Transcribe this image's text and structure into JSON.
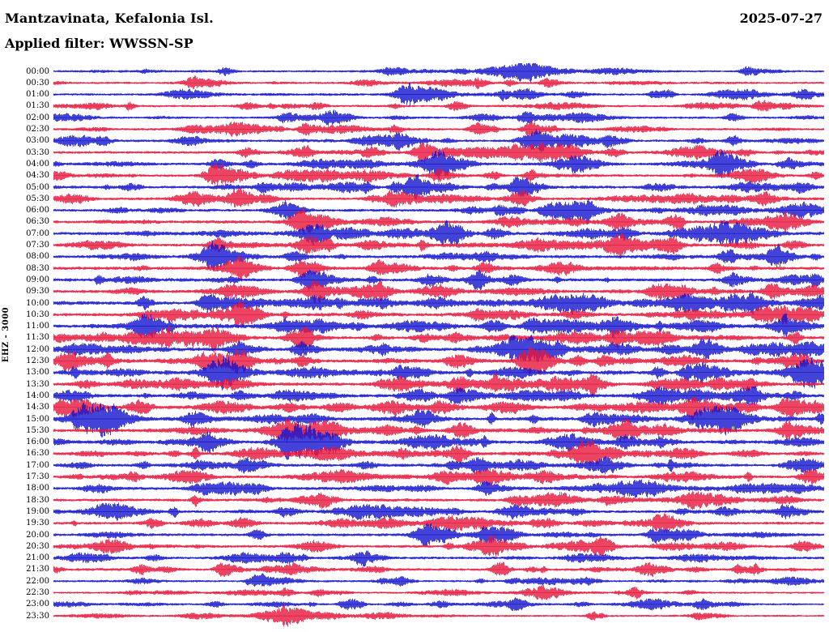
{
  "header": {
    "station": "Mantzavinata, Kefalonia Isl.",
    "date": "2025-07-27",
    "filter_label": "Applied filter: WWSSN-SP"
  },
  "axis": {
    "channel_label": "EHZ - 3000"
  },
  "chart_data": {
    "type": "line",
    "subtype": "helicorder-seismogram",
    "station": "Mantzavinata, Kefalonia Isl.",
    "date": "2025-07-27",
    "filter": "WWSSN-SP",
    "channel": "EHZ",
    "scale": 3000,
    "minutes_per_row": 30,
    "time_start": "00:00",
    "time_end": "24:00",
    "grid": false,
    "legend": "none",
    "colors": {
      "blue": "#1414cf",
      "red": "#e8173d"
    },
    "seed": 20250727,
    "rows": [
      {
        "time": "00:00",
        "color": "blue",
        "activity": 0.4,
        "events": [
          [
            0.22,
            5
          ],
          [
            0.62,
            4
          ],
          [
            0.9,
            6
          ]
        ]
      },
      {
        "time": "00:30",
        "color": "red",
        "activity": 0.42,
        "events": [
          [
            0.18,
            7
          ],
          [
            0.55,
            5
          ],
          [
            0.64,
            6
          ]
        ]
      },
      {
        "time": "01:00",
        "color": "blue",
        "activity": 0.45,
        "events": [
          [
            0.46,
            16
          ],
          [
            0.78,
            5
          ]
        ]
      },
      {
        "time": "01:30",
        "color": "red",
        "activity": 0.45,
        "events": [
          [
            0.34,
            5
          ],
          [
            0.52,
            6
          ],
          [
            0.92,
            7
          ]
        ]
      },
      {
        "time": "02:00",
        "color": "blue",
        "activity": 0.5,
        "events": [
          [
            0.36,
            10
          ],
          [
            0.3,
            6
          ],
          [
            0.88,
            5
          ]
        ]
      },
      {
        "time": "02:30",
        "color": "red",
        "activity": 0.5,
        "events": [
          [
            0.33,
            5
          ],
          [
            0.55,
            8
          ],
          [
            0.62,
            10
          ]
        ]
      },
      {
        "time": "03:00",
        "color": "blue",
        "activity": 0.55,
        "events": [
          [
            0.63,
            15
          ],
          [
            0.72,
            7
          ],
          [
            0.45,
            5
          ]
        ]
      },
      {
        "time": "03:30",
        "color": "red",
        "activity": 0.58,
        "events": [
          [
            0.48,
            12
          ],
          [
            0.25,
            6
          ],
          [
            0.41,
            6
          ]
        ]
      },
      {
        "time": "04:00",
        "color": "blue",
        "activity": 0.6,
        "events": [
          [
            0.5,
            13
          ],
          [
            0.95,
            8
          ],
          [
            0.21,
            6
          ]
        ]
      },
      {
        "time": "04:30",
        "color": "red",
        "activity": 0.6,
        "events": [
          [
            0.21,
            13
          ],
          [
            0.5,
            9
          ],
          [
            0.62,
            6
          ]
        ]
      },
      {
        "time": "05:00",
        "color": "blue",
        "activity": 0.62,
        "events": [
          [
            0.47,
            16
          ],
          [
            0.6,
            10
          ],
          [
            0.27,
            6
          ]
        ]
      },
      {
        "time": "05:30",
        "color": "red",
        "activity": 0.62,
        "events": [
          [
            0.24,
            13
          ],
          [
            0.44,
            8
          ],
          [
            0.92,
            6
          ]
        ]
      },
      {
        "time": "06:00",
        "color": "blue",
        "activity": 0.62,
        "events": [
          [
            0.3,
            9
          ],
          [
            0.58,
            7
          ],
          [
            0.64,
            8
          ]
        ]
      },
      {
        "time": "06:30",
        "color": "red",
        "activity": 0.62,
        "events": [
          [
            0.32,
            13
          ],
          [
            0.73,
            8
          ],
          [
            0.8,
            6
          ]
        ]
      },
      {
        "time": "07:00",
        "color": "blue",
        "activity": 0.7,
        "events": [
          [
            0.34,
            13
          ],
          [
            0.57,
            7
          ],
          [
            0.74,
            6
          ]
        ]
      },
      {
        "time": "07:30",
        "color": "red",
        "activity": 0.7,
        "events": [
          [
            0.21,
            9
          ],
          [
            0.33,
            11
          ],
          [
            0.96,
            6
          ]
        ]
      },
      {
        "time": "08:00",
        "color": "blue",
        "activity": 0.72,
        "events": [
          [
            0.21,
            11
          ],
          [
            0.31,
            7
          ],
          [
            0.94,
            8
          ]
        ]
      },
      {
        "time": "08:30",
        "color": "red",
        "activity": 0.72,
        "events": [
          [
            0.32,
            9
          ],
          [
            0.42,
            7
          ],
          [
            0.86,
            6
          ]
        ]
      },
      {
        "time": "09:00",
        "color": "blue",
        "activity": 0.75,
        "events": [
          [
            0.33,
            10
          ],
          [
            0.88,
            9
          ],
          [
            0.55,
            6
          ]
        ]
      },
      {
        "time": "09:30",
        "color": "red",
        "activity": 0.75,
        "events": [
          [
            0.34,
            13
          ],
          [
            0.42,
            7
          ],
          [
            0.93,
            8
          ]
        ]
      },
      {
        "time": "10:00",
        "color": "blue",
        "activity": 0.78,
        "events": [
          [
            0.2,
            11
          ],
          [
            0.34,
            10
          ],
          [
            0.91,
            9
          ]
        ]
      },
      {
        "time": "10:30",
        "color": "red",
        "activity": 0.78,
        "events": [
          [
            0.24,
            8
          ],
          [
            0.55,
            7
          ],
          [
            0.92,
            10
          ]
        ]
      },
      {
        "time": "11:00",
        "color": "blue",
        "activity": 0.8,
        "events": [
          [
            0.95,
            11
          ],
          [
            0.62,
            8
          ],
          [
            0.3,
            7
          ]
        ]
      },
      {
        "time": "11:30",
        "color": "red",
        "activity": 0.8,
        "events": [
          [
            0.21,
            11
          ],
          [
            0.73,
            9
          ],
          [
            0.52,
            7
          ]
        ]
      },
      {
        "time": "12:00",
        "color": "blue",
        "activity": 0.82,
        "events": [
          [
            0.24,
            10
          ],
          [
            0.32,
            9
          ],
          [
            0.62,
            9
          ]
        ]
      },
      {
        "time": "12:30",
        "color": "red",
        "activity": 0.82,
        "events": [
          [
            0.2,
            14
          ],
          [
            0.62,
            11
          ],
          [
            0.32,
            7
          ]
        ]
      },
      {
        "time": "13:00",
        "color": "blue",
        "activity": 0.82,
        "events": [
          [
            0.22,
            12
          ],
          [
            0.45,
            9
          ],
          [
            0.82,
            7
          ]
        ]
      },
      {
        "time": "13:30",
        "color": "red",
        "activity": 0.8,
        "events": [
          [
            0.45,
            10
          ],
          [
            0.7,
            7
          ],
          [
            0.86,
            6
          ]
        ]
      },
      {
        "time": "14:00",
        "color": "blue",
        "activity": 0.78,
        "events": [
          [
            0.52,
            8
          ],
          [
            0.83,
            7
          ],
          [
            0.24,
            6
          ]
        ]
      },
      {
        "time": "14:30",
        "color": "red",
        "activity": 0.78,
        "events": [
          [
            0.5,
            9
          ],
          [
            0.83,
            8
          ],
          [
            0.95,
            10
          ]
        ]
      },
      {
        "time": "15:00",
        "color": "blue",
        "activity": 0.8,
        "events": [
          [
            0.18,
            10
          ],
          [
            0.48,
            9
          ],
          [
            0.7,
            10
          ],
          [
            0.88,
            11
          ]
        ]
      },
      {
        "time": "15:30",
        "color": "red",
        "activity": 0.8,
        "events": [
          [
            0.3,
            8
          ],
          [
            0.74,
            11
          ],
          [
            0.79,
            9
          ]
        ]
      },
      {
        "time": "16:00",
        "color": "blue",
        "activity": 0.78,
        "events": [
          [
            0.2,
            9
          ],
          [
            0.3,
            10
          ],
          [
            0.5,
            8
          ],
          [
            0.74,
            9
          ]
        ]
      },
      {
        "time": "16:30",
        "color": "red",
        "activity": 0.7,
        "events": [
          [
            0.69,
            11
          ],
          [
            0.45,
            7
          ]
        ]
      },
      {
        "time": "17:00",
        "color": "blue",
        "activity": 0.68,
        "events": [
          [
            0.25,
            7
          ],
          [
            0.55,
            8
          ],
          [
            0.98,
            9
          ]
        ]
      },
      {
        "time": "17:30",
        "color": "red",
        "activity": 0.68,
        "events": [
          [
            0.56,
            11
          ],
          [
            0.98,
            10
          ]
        ]
      },
      {
        "time": "18:00",
        "color": "blue",
        "activity": 0.66,
        "events": [
          [
            0.26,
            7
          ],
          [
            0.56,
            8
          ]
        ]
      },
      {
        "time": "18:30",
        "color": "red",
        "activity": 0.66,
        "events": [
          [
            0.35,
            7
          ],
          [
            0.6,
            6
          ],
          [
            0.72,
            7
          ]
        ]
      },
      {
        "time": "19:00",
        "color": "blue",
        "activity": 0.64,
        "events": [
          [
            0.3,
            7
          ],
          [
            0.95,
            9
          ]
        ]
      },
      {
        "time": "19:30",
        "color": "red",
        "activity": 0.62,
        "events": [
          [
            0.52,
            7
          ],
          [
            0.64,
            6
          ]
        ]
      },
      {
        "time": "20:00",
        "color": "blue",
        "activity": 0.62,
        "events": [
          [
            0.48,
            10
          ],
          [
            0.56,
            8
          ],
          [
            0.78,
            9
          ]
        ]
      },
      {
        "time": "20:30",
        "color": "red",
        "activity": 0.6,
        "events": [
          [
            0.57,
            13
          ],
          [
            0.97,
            8
          ]
        ]
      },
      {
        "time": "21:00",
        "color": "blue",
        "activity": 0.58,
        "events": [
          [
            0.4,
            10
          ],
          [
            0.3,
            7
          ]
        ]
      },
      {
        "time": "21:30",
        "color": "red",
        "activity": 0.55,
        "events": [
          [
            0.22,
            9
          ],
          [
            0.77,
            8
          ]
        ]
      },
      {
        "time": "22:00",
        "color": "blue",
        "activity": 0.45,
        "events": [
          [
            0.26,
            8
          ],
          [
            0.45,
            6
          ]
        ]
      },
      {
        "time": "22:30",
        "color": "red",
        "activity": 0.4,
        "events": [
          [
            0.3,
            5
          ],
          [
            0.75,
            6
          ]
        ]
      },
      {
        "time": "23:00",
        "color": "blue",
        "activity": 0.4,
        "events": [
          [
            0.38,
            7
          ],
          [
            0.6,
            6
          ],
          [
            0.84,
            7
          ]
        ]
      },
      {
        "time": "23:30",
        "color": "red",
        "activity": 0.38,
        "events": [
          [
            0.3,
            5
          ],
          [
            0.7,
            5
          ]
        ]
      }
    ]
  }
}
